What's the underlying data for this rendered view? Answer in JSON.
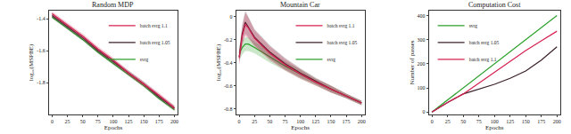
{
  "chart_data": [
    {
      "type": "line",
      "title": "Random MDP",
      "x_label": "Epochs",
      "y_label": "log₁₀(MSPBE)",
      "x": [
        0,
        10,
        25,
        50,
        75,
        100,
        125,
        150,
        175,
        200
      ],
      "xlim": [
        -5,
        205
      ],
      "xticks": [
        0,
        25,
        50,
        75,
        100,
        125,
        150,
        175,
        200
      ],
      "ylim": [
        -2.0,
        -1.35
      ],
      "yticks": [
        -1.4,
        -1.6,
        -1.8
      ],
      "grid": false,
      "legend": "upper right",
      "series": [
        {
          "name": "svrg",
          "color": "#2ca02c",
          "values": [
            -1.39,
            -1.42,
            -1.46,
            -1.53,
            -1.61,
            -1.68,
            -1.75,
            -1.82,
            -1.9,
            -1.97
          ],
          "error": [
            0.01,
            0.01,
            0.01,
            0.01,
            0.01,
            0.01,
            0.01,
            0.01,
            0.01,
            0.01
          ]
        },
        {
          "name": "batch svrg 1.05",
          "color": "#3a1f2a",
          "values": [
            -1.38,
            -1.41,
            -1.45,
            -1.52,
            -1.6,
            -1.67,
            -1.74,
            -1.81,
            -1.89,
            -1.96
          ],
          "error": [
            0.015,
            0.015,
            0.015,
            0.015,
            0.015,
            0.015,
            0.015,
            0.015,
            0.015,
            0.015
          ]
        },
        {
          "name": "batch svrg 1.1",
          "color": "#d62050",
          "values": [
            -1.37,
            -1.4,
            -1.44,
            -1.51,
            -1.59,
            -1.66,
            -1.74,
            -1.81,
            -1.88,
            -1.96
          ],
          "error": [
            0.015,
            0.015,
            0.015,
            0.015,
            0.015,
            0.015,
            0.015,
            0.015,
            0.015,
            0.015
          ]
        }
      ]
    },
    {
      "type": "line",
      "title": "Mountain Car",
      "x_label": "Epochs",
      "y_label": "log₁₀(MSPBE)",
      "x": [
        0,
        5,
        10,
        15,
        25,
        50,
        75,
        100,
        125,
        150,
        175,
        200
      ],
      "xlim": [
        -5,
        205
      ],
      "xticks": [
        0,
        25,
        50,
        75,
        100,
        125,
        150,
        175,
        200
      ],
      "ylim": [
        -0.85,
        0.05
      ],
      "yticks": [
        -0.8,
        -0.6,
        -0.4,
        -0.2,
        0
      ],
      "grid": false,
      "legend": "upper right",
      "series": [
        {
          "name": "svrg",
          "color": "#2ca02c",
          "values": [
            -0.32,
            -0.27,
            -0.24,
            -0.24,
            -0.27,
            -0.35,
            -0.43,
            -0.5,
            -0.57,
            -0.63,
            -0.69,
            -0.75
          ],
          "error": [
            0.06,
            0.06,
            0.06,
            0.06,
            0.05,
            0.05,
            0.04,
            0.04,
            0.03,
            0.03,
            0.02,
            0.02
          ]
        },
        {
          "name": "batch svrg 1.05",
          "color": "#3a1f2a",
          "values": [
            -0.35,
            -0.15,
            -0.05,
            -0.09,
            -0.18,
            -0.31,
            -0.41,
            -0.49,
            -0.56,
            -0.63,
            -0.69,
            -0.75
          ],
          "error": [
            0.06,
            0.08,
            0.1,
            0.09,
            0.07,
            0.06,
            0.05,
            0.04,
            0.03,
            0.03,
            0.02,
            0.02
          ]
        },
        {
          "name": "batch svrg 1.1",
          "color": "#d62050",
          "values": [
            -0.36,
            -0.17,
            -0.07,
            -0.1,
            -0.19,
            -0.32,
            -0.42,
            -0.5,
            -0.57,
            -0.63,
            -0.69,
            -0.75
          ],
          "error": [
            0.06,
            0.08,
            0.1,
            0.09,
            0.07,
            0.06,
            0.05,
            0.04,
            0.03,
            0.03,
            0.02,
            0.02
          ]
        }
      ]
    },
    {
      "type": "line",
      "title": "Computation Cost",
      "x_label": "Epochs",
      "y_label": "Number of passes",
      "x": [
        0,
        25,
        50,
        75,
        100,
        125,
        150,
        175,
        200
      ],
      "xlim": [
        -5,
        205
      ],
      "xticks": [
        0,
        25,
        50,
        75,
        100,
        125,
        150,
        175,
        200
      ],
      "ylim": [
        -10,
        420
      ],
      "yticks": [
        0,
        100,
        200,
        300,
        400
      ],
      "grid": false,
      "legend": "upper left",
      "series": [
        {
          "name": "svrg",
          "color": "#2ca02c",
          "values": [
            0,
            50,
            100,
            150,
            200,
            250,
            300,
            350,
            400
          ]
        },
        {
          "name": "batch svrg 1.05",
          "color": "#3a1f2a",
          "values": [
            0,
            40,
            75,
            95,
            115,
            140,
            170,
            215,
            270
          ]
        },
        {
          "name": "batch svrg 1.1",
          "color": "#d62050",
          "values": [
            0,
            40,
            75,
            120,
            165,
            210,
            255,
            295,
            335
          ]
        }
      ]
    }
  ]
}
